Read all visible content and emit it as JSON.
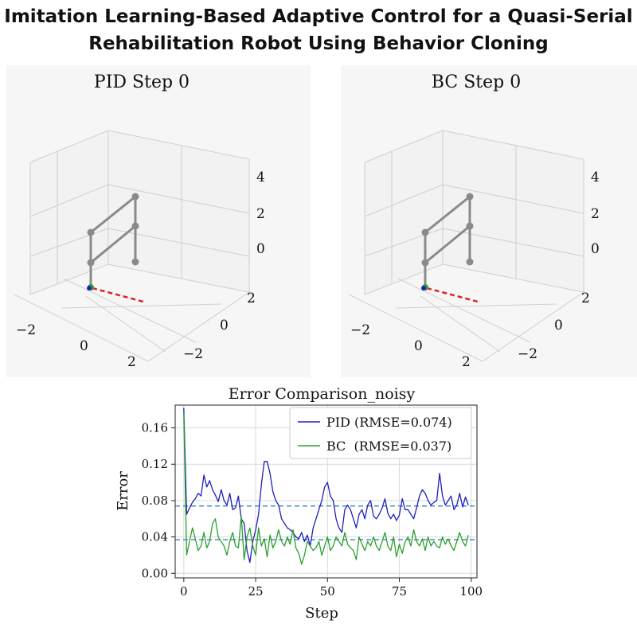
{
  "header": {
    "title_line1": "Imitation Learning-Based Adaptive Control for a Quasi-Serial",
    "title_line2": "Rehabilitation Robot Using Behavior Cloning"
  },
  "panels": [
    {
      "title": "PID Step 0",
      "z_ticks": [
        "4",
        "2",
        "0"
      ],
      "y_ticks": [
        "2",
        "0",
        "−2"
      ],
      "x_ticks": [
        "−2",
        "0",
        "2"
      ]
    },
    {
      "title": "BC Step 0",
      "z_ticks": [
        "4",
        "2",
        "0"
      ],
      "y_ticks": [
        "2",
        "0",
        "−2"
      ],
      "x_ticks": [
        "−2",
        "0",
        "2"
      ]
    }
  ],
  "colors": {
    "pid": "#1f1fbf",
    "bc": "#2ca02c",
    "reference": "#1f77b4",
    "trajectory": "#d62728",
    "link": "#8a8a8a"
  },
  "chart_data": {
    "type": "line",
    "title": "Error Comparison_noisy",
    "xlabel": "Step",
    "ylabel": "Error",
    "xlim": [
      -3,
      102
    ],
    "ylim": [
      -0.005,
      0.185
    ],
    "xticks": [
      0,
      25,
      50,
      75,
      100
    ],
    "yticks": [
      0.0,
      0.04,
      0.08,
      0.12,
      0.16
    ],
    "ytick_labels": [
      "0.00",
      "0.04",
      "0.08",
      "0.12",
      "0.16"
    ],
    "grid": true,
    "legend_position": "top-right",
    "hlines": [
      0.074,
      0.037
    ],
    "series": [
      {
        "name": "PID (RMSE=0.074)",
        "color": "#1f1fbf",
        "values": [
          0.182,
          0.065,
          0.072,
          0.078,
          0.082,
          0.088,
          0.085,
          0.108,
          0.095,
          0.102,
          0.092,
          0.086,
          0.079,
          0.092,
          0.08,
          0.075,
          0.088,
          0.07,
          0.072,
          0.085,
          0.06,
          0.055,
          0.025,
          0.012,
          0.035,
          0.048,
          0.065,
          0.098,
          0.123,
          0.123,
          0.11,
          0.09,
          0.08,
          0.075,
          0.06,
          0.055,
          0.05,
          0.048,
          0.045,
          0.04,
          0.038,
          0.045,
          0.035,
          0.042,
          0.03,
          0.05,
          0.06,
          0.07,
          0.08,
          0.095,
          0.1,
          0.085,
          0.08,
          0.06,
          0.05,
          0.045,
          0.07,
          0.075,
          0.07,
          0.06,
          0.05,
          0.065,
          0.07,
          0.06,
          0.075,
          0.08,
          0.063,
          0.06,
          0.065,
          0.072,
          0.082,
          0.066,
          0.06,
          0.065,
          0.058,
          0.064,
          0.082,
          0.07,
          0.07,
          0.065,
          0.06,
          0.072,
          0.085,
          0.092,
          0.088,
          0.08,
          0.075,
          0.078,
          0.08,
          0.11,
          0.085,
          0.075,
          0.08,
          0.085,
          0.07,
          0.075,
          0.088,
          0.073,
          0.084,
          0.075
        ]
      },
      {
        "name": "BC  (RMSE=0.037)",
        "color": "#2ca02c",
        "values": [
          0.175,
          0.02,
          0.035,
          0.05,
          0.038,
          0.025,
          0.03,
          0.045,
          0.028,
          0.035,
          0.055,
          0.06,
          0.04,
          0.035,
          0.03,
          0.02,
          0.035,
          0.045,
          0.03,
          0.028,
          0.063,
          0.015,
          0.04,
          0.05,
          0.03,
          0.02,
          0.05,
          0.03,
          0.038,
          0.018,
          0.042,
          0.028,
          0.035,
          0.048,
          0.035,
          0.03,
          0.04,
          0.032,
          0.048,
          0.028,
          0.022,
          0.01,
          0.02,
          0.035,
          0.03,
          0.025,
          0.028,
          0.035,
          0.02,
          0.03,
          0.04,
          0.025,
          0.03,
          0.04,
          0.035,
          0.03,
          0.045,
          0.032,
          0.028,
          0.025,
          0.015,
          0.04,
          0.032,
          0.025,
          0.035,
          0.03,
          0.04,
          0.03,
          0.025,
          0.035,
          0.045,
          0.03,
          0.025,
          0.04,
          0.018,
          0.032,
          0.022,
          0.035,
          0.04,
          0.03,
          0.048,
          0.035,
          0.03,
          0.038,
          0.025,
          0.04,
          0.03,
          0.035,
          0.03,
          0.028,
          0.04,
          0.032,
          0.038,
          0.03,
          0.025,
          0.035,
          0.045,
          0.035,
          0.03,
          0.042
        ]
      }
    ]
  }
}
